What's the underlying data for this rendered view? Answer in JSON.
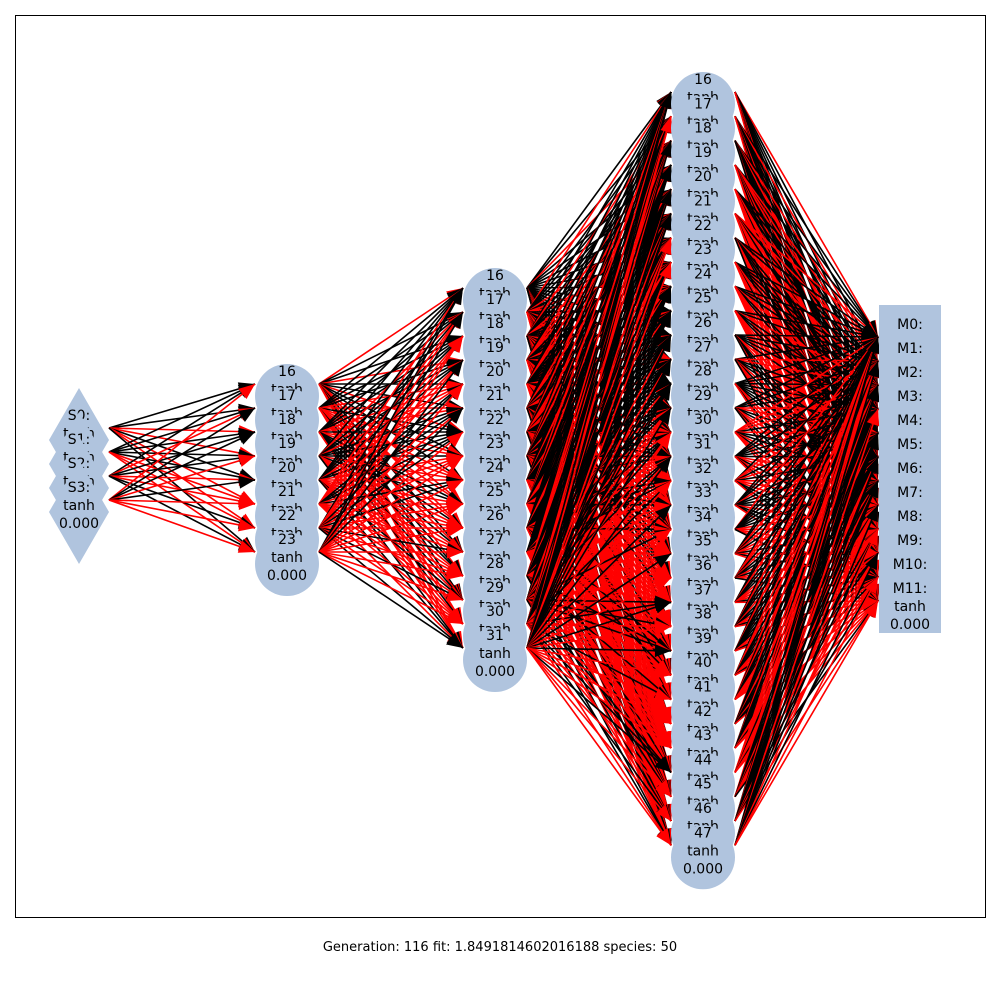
{
  "caption": "Generation: 116 fit: 1.8491814602016188 species: 50",
  "colors": {
    "node": "#b0c4de",
    "positive_edge": "#000000",
    "negative_edge": "#ff0000",
    "frame": "#000000"
  },
  "layers": [
    {
      "shape": "diamond",
      "nodes": [
        {
          "id": "S0:",
          "act": "tanh",
          "val": "0.000"
        },
        {
          "id": "S1:",
          "act": "tanh",
          "val": "0.000"
        },
        {
          "id": "S2:",
          "act": "tanh",
          "val": "0.000"
        },
        {
          "id": "S3:",
          "act": "tanh",
          "val": "0.000"
        }
      ]
    },
    {
      "shape": "circle",
      "nodes": [
        {
          "id": "16",
          "act": "tanh",
          "val": "0.000"
        },
        {
          "id": "17",
          "act": "tanh",
          "val": "0.000"
        },
        {
          "id": "18",
          "act": "tanh",
          "val": "0.000"
        },
        {
          "id": "19",
          "act": "tanh",
          "val": "0.000"
        },
        {
          "id": "20",
          "act": "tanh",
          "val": "0.000"
        },
        {
          "id": "21",
          "act": "tanh",
          "val": "0.000"
        },
        {
          "id": "22",
          "act": "tanh",
          "val": "0.000"
        },
        {
          "id": "23",
          "act": "tanh",
          "val": "0.000"
        }
      ]
    },
    {
      "shape": "circle",
      "nodes": [
        {
          "id": "16",
          "act": "tanh",
          "val": "0.000"
        },
        {
          "id": "17",
          "act": "tanh",
          "val": "0.000"
        },
        {
          "id": "18",
          "act": "tanh",
          "val": "0.000"
        },
        {
          "id": "19",
          "act": "tanh",
          "val": "0.000"
        },
        {
          "id": "20",
          "act": "tanh",
          "val": "0.000"
        },
        {
          "id": "21",
          "act": "tanh",
          "val": "0.000"
        },
        {
          "id": "22",
          "act": "tanh",
          "val": "0.000"
        },
        {
          "id": "23",
          "act": "tanh",
          "val": "0.000"
        },
        {
          "id": "24",
          "act": "tanh",
          "val": "0.000"
        },
        {
          "id": "25",
          "act": "tanh",
          "val": "0.000"
        },
        {
          "id": "26",
          "act": "tanh",
          "val": "0.000"
        },
        {
          "id": "27",
          "act": "tanh",
          "val": "0.000"
        },
        {
          "id": "28",
          "act": "tanh",
          "val": "0.000"
        },
        {
          "id": "29",
          "act": "tanh",
          "val": "0.000"
        },
        {
          "id": "30",
          "act": "tanh",
          "val": "0.000"
        },
        {
          "id": "31",
          "act": "tanh",
          "val": "0.000"
        }
      ]
    },
    {
      "shape": "circle",
      "nodes": [
        {
          "id": "16",
          "act": "tanh",
          "val": "0.000"
        },
        {
          "id": "17",
          "act": "tanh",
          "val": "0.000"
        },
        {
          "id": "18",
          "act": "tanh",
          "val": "0.000"
        },
        {
          "id": "19",
          "act": "tanh",
          "val": "0.000"
        },
        {
          "id": "20",
          "act": "tanh",
          "val": "0.000"
        },
        {
          "id": "21",
          "act": "tanh",
          "val": "0.000"
        },
        {
          "id": "22",
          "act": "tanh",
          "val": "0.000"
        },
        {
          "id": "23",
          "act": "tanh",
          "val": "0.000"
        },
        {
          "id": "24",
          "act": "tanh",
          "val": "0.000"
        },
        {
          "id": "25",
          "act": "tanh",
          "val": "0.000"
        },
        {
          "id": "26",
          "act": "tanh",
          "val": "0.000"
        },
        {
          "id": "27",
          "act": "tanh",
          "val": "0.000"
        },
        {
          "id": "28",
          "act": "tanh",
          "val": "0.000"
        },
        {
          "id": "29",
          "act": "tanh",
          "val": "0.000"
        },
        {
          "id": "30",
          "act": "tanh",
          "val": "0.000"
        },
        {
          "id": "31",
          "act": "tanh",
          "val": "0.000"
        },
        {
          "id": "32",
          "act": "tanh",
          "val": "0.000"
        },
        {
          "id": "33",
          "act": "tanh",
          "val": "0.000"
        },
        {
          "id": "34",
          "act": "tanh",
          "val": "0.000"
        },
        {
          "id": "35",
          "act": "tanh",
          "val": "0.000"
        },
        {
          "id": "36",
          "act": "tanh",
          "val": "0.000"
        },
        {
          "id": "37",
          "act": "tanh",
          "val": "0.000"
        },
        {
          "id": "38",
          "act": "tanh",
          "val": "0.000"
        },
        {
          "id": "39",
          "act": "tanh",
          "val": "0.000"
        },
        {
          "id": "40",
          "act": "tanh",
          "val": "0.000"
        },
        {
          "id": "41",
          "act": "tanh",
          "val": "0.000"
        },
        {
          "id": "42",
          "act": "tanh",
          "val": "0.000"
        },
        {
          "id": "43",
          "act": "tanh",
          "val": "0.000"
        },
        {
          "id": "44",
          "act": "tanh",
          "val": "0.000"
        },
        {
          "id": "45",
          "act": "tanh",
          "val": "0.000"
        },
        {
          "id": "46",
          "act": "tanh",
          "val": "0.000"
        },
        {
          "id": "47",
          "act": "tanh",
          "val": "0.000"
        }
      ]
    },
    {
      "shape": "rect",
      "nodes": [
        {
          "id": "M0:",
          "act": "tanh",
          "val": "0.000"
        },
        {
          "id": "M1:",
          "act": "tanh",
          "val": "0.000"
        },
        {
          "id": "M2:",
          "act": "tanh",
          "val": "0.000"
        },
        {
          "id": "M3:",
          "act": "tanh",
          "val": "0.000"
        },
        {
          "id": "M4:",
          "act": "tanh",
          "val": "0.000"
        },
        {
          "id": "M5:",
          "act": "tanh",
          "val": "0.000"
        },
        {
          "id": "M6:",
          "act": "tanh",
          "val": "0.000"
        },
        {
          "id": "M7:",
          "act": "tanh",
          "val": "0.000"
        },
        {
          "id": "M8:",
          "act": "tanh",
          "val": "0.000"
        },
        {
          "id": "M9:",
          "act": "tanh",
          "val": "0.000"
        },
        {
          "id": "M10:",
          "act": "tanh",
          "val": "0.000"
        },
        {
          "id": "M11:",
          "act": "tanh",
          "val": "0.000"
        }
      ]
    }
  ]
}
